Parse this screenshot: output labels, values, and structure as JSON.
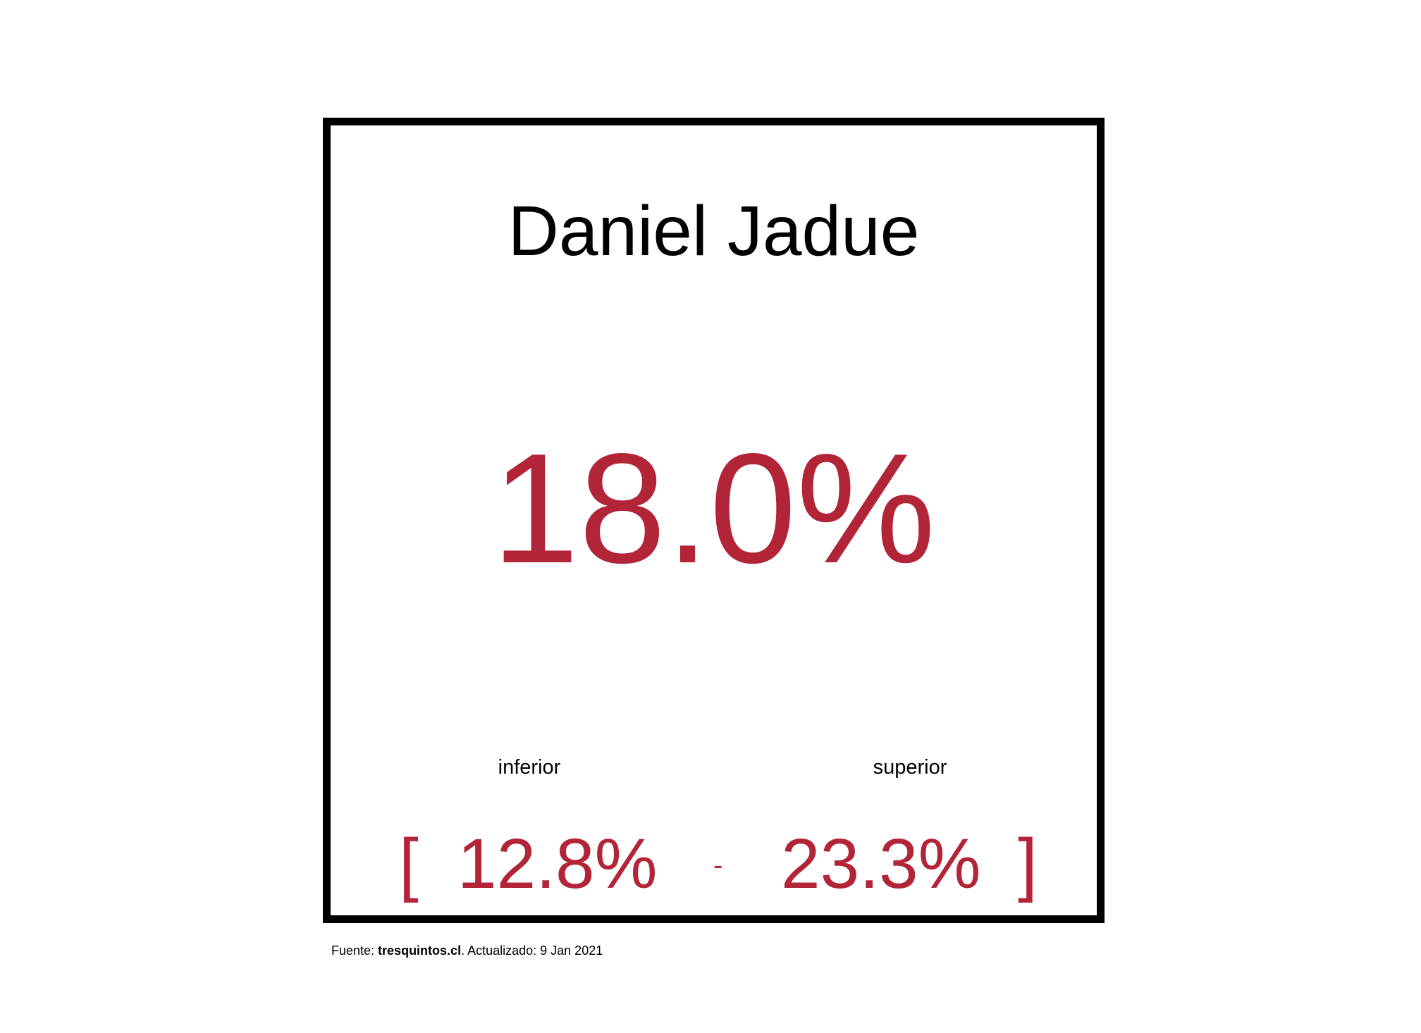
{
  "chart_data": {
    "type": "table",
    "title": "Daniel Jadue",
    "estimate": 18.0,
    "estimate_label": "18.0%",
    "interval": {
      "lower": 12.8,
      "upper": 23.3,
      "lower_label": "12.8%",
      "upper_label": "23.3%",
      "lower_caption": "inferior",
      "upper_caption": "superior",
      "open_bracket": "[",
      "close_bracket": "]",
      "separator": "-"
    }
  },
  "footer": {
    "prefix": "Fuente: ",
    "source": "tresquintos.cl",
    "suffix": ". Actualizado: 9 Jan 2021"
  },
  "colors": {
    "accent": "#b22538",
    "text": "#000000",
    "border": "#000000"
  }
}
